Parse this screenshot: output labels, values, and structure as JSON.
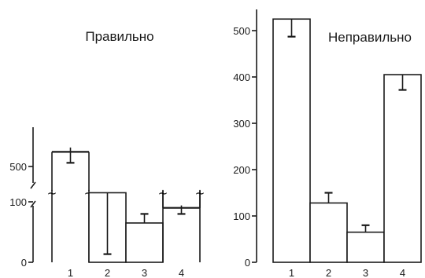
{
  "chart_data": [
    {
      "type": "bar",
      "title": "Правильно",
      "categories": [
        "1",
        "2",
        "3",
        "4"
      ],
      "values": [
        560,
        115,
        65,
        330
      ],
      "errors": [
        45,
        25,
        15,
        25
      ],
      "yticks": [
        "500",
        "100",
        "0"
      ],
      "broken_axis": true,
      "break_glyph": "~",
      "ylim": [
        0,
        600
      ]
    },
    {
      "type": "bar",
      "title": "Неправильно",
      "categories": [
        "1",
        "2",
        "3",
        "4"
      ],
      "values": [
        525,
        128,
        65,
        405
      ],
      "errors": [
        38,
        22,
        15,
        33
      ],
      "yticks": [
        "0",
        "100",
        "200",
        "300",
        "400",
        "500"
      ],
      "ylim": [
        0,
        560
      ]
    }
  ]
}
